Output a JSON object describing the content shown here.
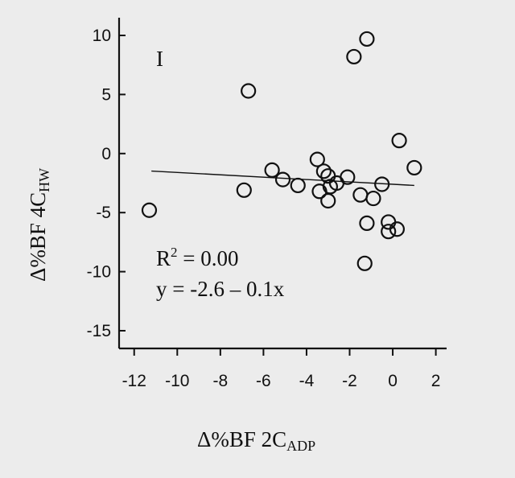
{
  "chart_data": {
    "type": "scatter",
    "panel_label": "I",
    "x_axis": {
      "label_main": "Δ%BF  2C",
      "label_sub": "ADP",
      "lim": [
        -12.7,
        2.5
      ],
      "ticks": [
        -12,
        -10,
        -8,
        -6,
        -4,
        -2,
        0,
        2
      ]
    },
    "y_axis": {
      "label_main": "Δ%BF  4C",
      "label_sub": "HW",
      "lim": [
        -16.5,
        11.5
      ],
      "ticks": [
        -15,
        -10,
        -5,
        0,
        5,
        10
      ]
    },
    "annotations": {
      "r2_base": "R",
      "r2_sup": "2",
      "r2_rest": " = 0.00",
      "equation": "y = -2.6 – 0.1x"
    },
    "fit_line": {
      "intercept": -2.6,
      "slope": -0.1,
      "x_range": [
        -11.2,
        1.0
      ]
    },
    "points": [
      {
        "x": -11.3,
        "y": -4.8
      },
      {
        "x": -6.9,
        "y": -3.1
      },
      {
        "x": -6.7,
        "y": 5.3
      },
      {
        "x": -5.6,
        "y": -1.4
      },
      {
        "x": -5.1,
        "y": -2.2
      },
      {
        "x": -4.4,
        "y": -2.7
      },
      {
        "x": -3.5,
        "y": -0.5
      },
      {
        "x": -3.4,
        "y": -3.2
      },
      {
        "x": -3.2,
        "y": -1.5
      },
      {
        "x": -3.0,
        "y": -1.9
      },
      {
        "x": -3.0,
        "y": -4.0
      },
      {
        "x": -2.9,
        "y": -2.8
      },
      {
        "x": -2.6,
        "y": -2.5
      },
      {
        "x": -2.1,
        "y": -2.0
      },
      {
        "x": -1.8,
        "y": 8.2
      },
      {
        "x": -1.5,
        "y": -3.5
      },
      {
        "x": -1.3,
        "y": -9.3
      },
      {
        "x": -1.2,
        "y": 9.7
      },
      {
        "x": -1.2,
        "y": -5.9
      },
      {
        "x": -0.9,
        "y": -3.8
      },
      {
        "x": -0.5,
        "y": -2.6
      },
      {
        "x": -0.2,
        "y": -5.8
      },
      {
        "x": -0.2,
        "y": -6.6
      },
      {
        "x": 0.2,
        "y": -6.4
      },
      {
        "x": 0.3,
        "y": 1.1
      },
      {
        "x": 1.0,
        "y": -1.2
      }
    ]
  }
}
